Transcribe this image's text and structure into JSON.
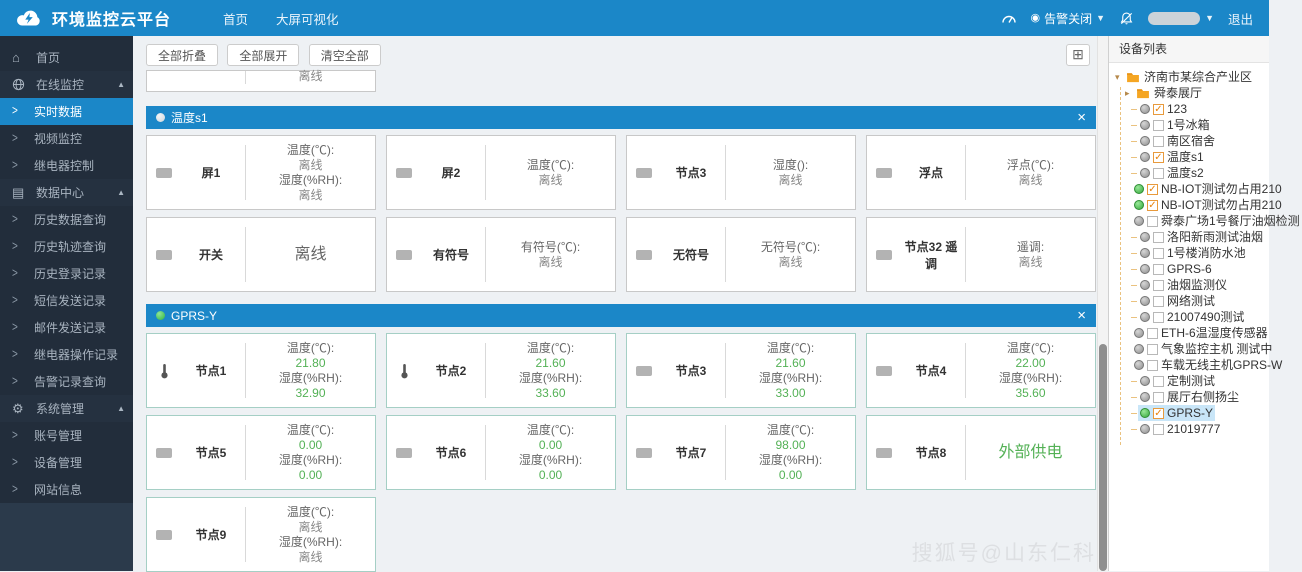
{
  "navbar": {
    "brand": "环境监控云平台",
    "menu_home": "首页",
    "menu_bigscreen": "大屏可视化",
    "alarm_label": "告警关闭",
    "logout": "退出"
  },
  "toolbar": {
    "collapse_all": "全部折叠",
    "expand_all": "全部展开",
    "clear_all": "清空全部"
  },
  "partial_card": {
    "value": "离线"
  },
  "sidebar": {
    "items": [
      {
        "label": "首页",
        "type": "top",
        "icon": "home-icon"
      },
      {
        "label": "在线监控",
        "type": "group",
        "icon": "globe-icon"
      },
      {
        "label": "实时数据",
        "type": "sub",
        "active": true
      },
      {
        "label": "视频监控",
        "type": "sub"
      },
      {
        "label": "继电器控制",
        "type": "sub"
      },
      {
        "label": "数据中心",
        "type": "group",
        "icon": "data-icon"
      },
      {
        "label": "历史数据查询",
        "type": "sub"
      },
      {
        "label": "历史轨迹查询",
        "type": "sub"
      },
      {
        "label": "历史登录记录",
        "type": "sub"
      },
      {
        "label": "短信发送记录",
        "type": "sub"
      },
      {
        "label": "邮件发送记录",
        "type": "sub"
      },
      {
        "label": "继电器操作记录",
        "type": "sub"
      },
      {
        "label": "告警记录查询",
        "type": "sub"
      },
      {
        "label": "系统管理",
        "type": "group",
        "icon": "gear-icon"
      },
      {
        "label": "账号管理",
        "type": "sub"
      },
      {
        "label": "设备管理",
        "type": "sub"
      },
      {
        "label": "网站信息",
        "type": "sub"
      }
    ]
  },
  "panels": [
    {
      "title": "温度s1",
      "status": "offline",
      "close": "×",
      "cards": [
        {
          "name": "屏1",
          "icon": "device",
          "lines": [
            [
              "label",
              "温度(℃):"
            ],
            [
              "off",
              "离线"
            ],
            [
              "label",
              "湿度(%RH):"
            ],
            [
              "off",
              "离线"
            ]
          ]
        },
        {
          "name": "屏2",
          "icon": "device",
          "lines": [
            [
              "label",
              "温度(℃):"
            ],
            [
              "off",
              "离线"
            ]
          ]
        },
        {
          "name": "节点3",
          "icon": "device",
          "lines": [
            [
              "label",
              "湿度():"
            ],
            [
              "off",
              "离线"
            ]
          ]
        },
        {
          "name": "浮点",
          "icon": "device",
          "lines": [
            [
              "label",
              "浮点(℃):"
            ],
            [
              "off",
              "离线"
            ]
          ]
        },
        {
          "name": "开关",
          "icon": "device",
          "lines": [
            [
              "big",
              "离线"
            ]
          ]
        },
        {
          "name": "有符号",
          "icon": "device",
          "lines": [
            [
              "label",
              "有符号(℃):"
            ],
            [
              "off",
              "离线"
            ]
          ]
        },
        {
          "name": "无符号",
          "icon": "device",
          "lines": [
            [
              "label",
              "无符号(℃):"
            ],
            [
              "off",
              "离线"
            ]
          ]
        },
        {
          "name": "节点32 遥调",
          "icon": "device",
          "lines": [
            [
              "label",
              "遥调:"
            ],
            [
              "off",
              "离线"
            ]
          ]
        }
      ]
    },
    {
      "title": "GPRS-Y",
      "status": "online",
      "close": "×",
      "cards": [
        {
          "name": "节点1",
          "icon": "thermo",
          "lines": [
            [
              "label",
              "温度(℃):"
            ],
            [
              "num",
              "21.80"
            ],
            [
              "label",
              "湿度(%RH):"
            ],
            [
              "num",
              "32.90"
            ]
          ]
        },
        {
          "name": "节点2",
          "icon": "thermo",
          "lines": [
            [
              "label",
              "温度(℃):"
            ],
            [
              "num",
              "21.60"
            ],
            [
              "label",
              "湿度(%RH):"
            ],
            [
              "num",
              "33.60"
            ]
          ]
        },
        {
          "name": "节点3",
          "icon": "device",
          "lines": [
            [
              "label",
              "温度(℃):"
            ],
            [
              "num",
              "21.60"
            ],
            [
              "label",
              "湿度(%RH):"
            ],
            [
              "num",
              "33.00"
            ]
          ]
        },
        {
          "name": "节点4",
          "icon": "device",
          "lines": [
            [
              "label",
              "温度(℃):"
            ],
            [
              "num",
              "22.00"
            ],
            [
              "label",
              "湿度(%RH):"
            ],
            [
              "num",
              "35.60"
            ]
          ]
        },
        {
          "name": "节点5",
          "icon": "device",
          "lines": [
            [
              "label",
              "温度(℃):"
            ],
            [
              "num",
              "0.00"
            ],
            [
              "label",
              "湿度(%RH):"
            ],
            [
              "num",
              "0.00"
            ]
          ]
        },
        {
          "name": "节点6",
          "icon": "device",
          "lines": [
            [
              "label",
              "温度(℃):"
            ],
            [
              "num",
              "0.00"
            ],
            [
              "label",
              "湿度(%RH):"
            ],
            [
              "num",
              "0.00"
            ]
          ]
        },
        {
          "name": "节点7",
          "icon": "device",
          "lines": [
            [
              "label",
              "温度(℃):"
            ],
            [
              "num",
              "98.00"
            ],
            [
              "label",
              "湿度(%RH):"
            ],
            [
              "num",
              "0.00"
            ]
          ]
        },
        {
          "name": "节点8",
          "icon": "device",
          "lines": [
            [
              "biggreen",
              "外部供电"
            ]
          ]
        },
        {
          "name": "节点9",
          "icon": "device",
          "lines": [
            [
              "label",
              "温度(℃):"
            ],
            [
              "off",
              "离线"
            ],
            [
              "label",
              "湿度(%RH):"
            ],
            [
              "off",
              "离线"
            ]
          ]
        }
      ]
    }
  ],
  "device_panel": {
    "title": "设备列表",
    "root": "济南市某综合产业区",
    "folder": "舜泰展厅",
    "devices": [
      {
        "label": "123",
        "checked": true,
        "online": false
      },
      {
        "label": "1号冰箱",
        "checked": false,
        "online": false
      },
      {
        "label": "南区宿舍",
        "checked": false,
        "online": false
      },
      {
        "label": "温度s1",
        "checked": true,
        "online": false
      },
      {
        "label": "温度s2",
        "checked": false,
        "online": false
      },
      {
        "label": "NB-IOT测试勿占用210",
        "checked": true,
        "online": true
      },
      {
        "label": "NB-IOT测试勿占用210",
        "checked": true,
        "online": true
      },
      {
        "label": "舜泰广场1号餐厅油烟检测",
        "checked": false,
        "online": false
      },
      {
        "label": "洛阳新雨测试油烟",
        "checked": false,
        "online": false
      },
      {
        "label": "1号楼消防水池",
        "checked": false,
        "online": false
      },
      {
        "label": "GPRS-6",
        "checked": false,
        "online": false
      },
      {
        "label": "油烟监测仪",
        "checked": false,
        "online": false
      },
      {
        "label": "网络测试",
        "checked": false,
        "online": false
      },
      {
        "label": "21007490测试",
        "checked": false,
        "online": false
      },
      {
        "label": "ETH-6温湿度传感器",
        "checked": false,
        "online": false
      },
      {
        "label": "气象监控主机 测试中",
        "checked": false,
        "online": false
      },
      {
        "label": "车载无线主机GPRS-W",
        "checked": false,
        "online": false
      },
      {
        "label": "定制测试",
        "checked": false,
        "online": false
      },
      {
        "label": "展厅右侧扬尘",
        "checked": false,
        "online": false
      },
      {
        "label": "GPRS-Y",
        "checked": true,
        "online": true,
        "selected": true
      },
      {
        "label": "21019777",
        "checked": false,
        "online": false
      }
    ]
  },
  "watermark": "搜狐号@山东仁科",
  "colors": {
    "navbar_blue": "#1b87c8",
    "sidebar_dark": "#222d3b",
    "value_green": "#54b156",
    "online_green": "#36a93e",
    "folder_orange": "#f5a623",
    "selected_bg": "#c9e6f8",
    "card_border_offline": "#c8c8c8",
    "card_border_online": "#a5cfc5"
  }
}
